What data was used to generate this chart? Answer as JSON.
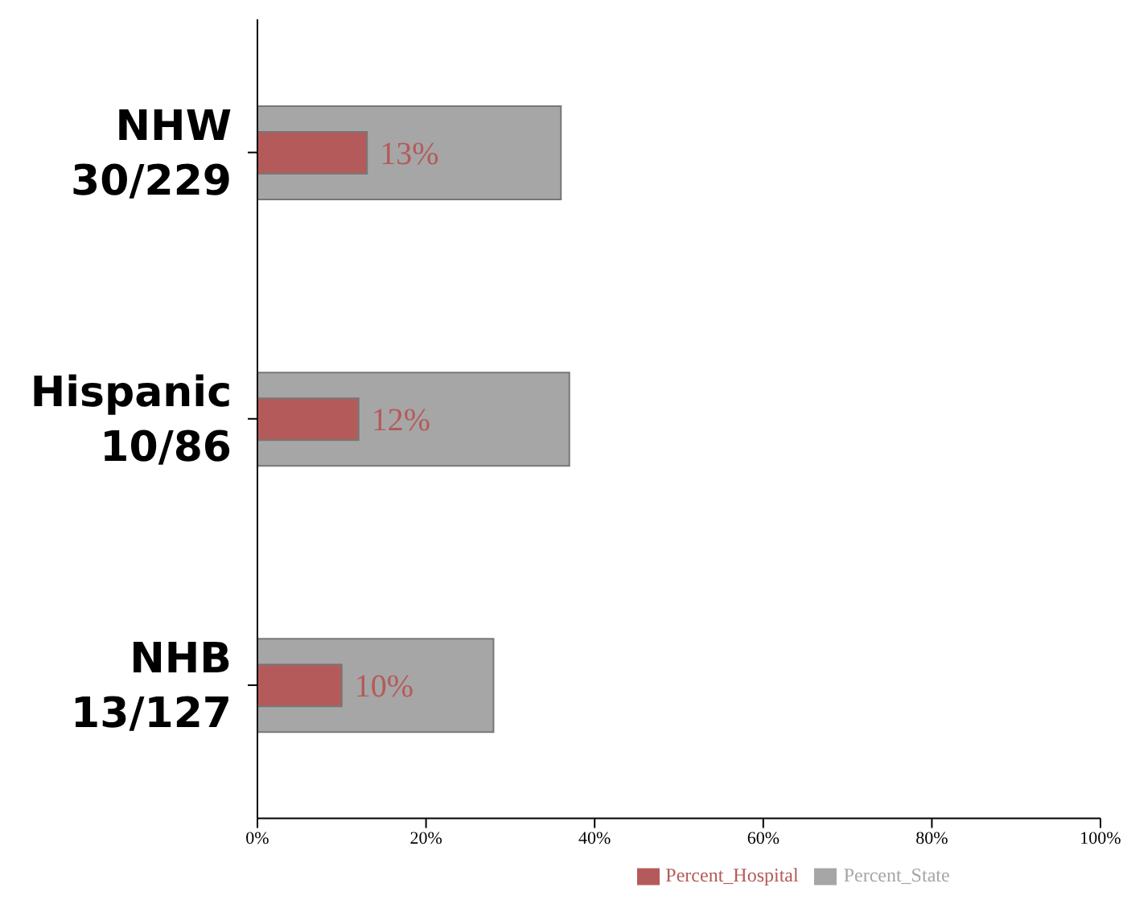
{
  "chart_data": {
    "type": "bar",
    "orientation": "horizontal",
    "categories": [
      "NHW\n30/229",
      "Hispanic\n10/86",
      "NHB\n13/127"
    ],
    "series": [
      {
        "name": "Percent_State",
        "color": "#a6a6a6",
        "values": [
          36,
          37,
          28
        ]
      },
      {
        "name": "Percent_Hospital",
        "color": "#b55a5a",
        "values": [
          13,
          12,
          10
        ],
        "value_labels": [
          "13%",
          "12%",
          "10%"
        ]
      }
    ],
    "xlim": [
      0,
      100
    ],
    "xticks": [
      {
        "value": 0,
        "label": "0%"
      },
      {
        "value": 20,
        "label": "20%"
      },
      {
        "value": 40,
        "label": "40%"
      },
      {
        "value": 60,
        "label": "60%"
      },
      {
        "value": 80,
        "label": "80%"
      },
      {
        "value": 100,
        "label": "100%"
      }
    ],
    "grid": false,
    "legend": "bottom"
  }
}
